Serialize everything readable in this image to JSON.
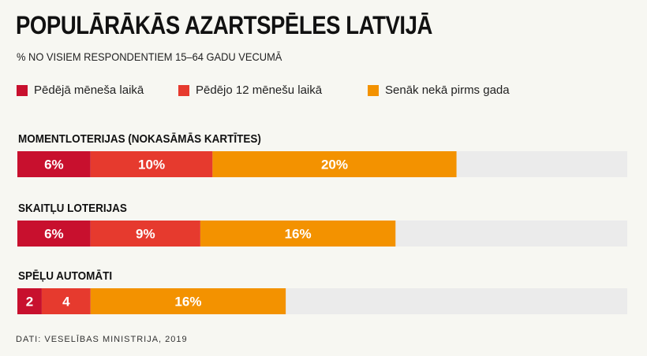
{
  "header": {
    "title": "POPULĀRĀKĀS AZARTSPĒLES LATVIJĀ",
    "subtitle": "% NO VISIEM RESPONDENTIEM 15–64 GADU VECUMĀ"
  },
  "legend": [
    {
      "label": "Pēdējā mēneša laikā",
      "color": "#c8102e"
    },
    {
      "label": "Pēdējo 12 mēnešu laikā",
      "color": "#e63a2e"
    },
    {
      "label": "Senāk nekā pirms gada",
      "color": "#f39200"
    }
  ],
  "colors": {
    "track": "#ebebeb",
    "segment_text": "#ffffff"
  },
  "chart_data": {
    "type": "bar",
    "orientation": "horizontal",
    "stacked": true,
    "unit": "%",
    "categories": [
      "MOMENTLOTERIJAS (NOKASĀMĀS KARTĪTES)",
      "SKAITĻU LOTERIJAS",
      "SPĒĻU AUTOMĀTI"
    ],
    "series": [
      {
        "name": "Pēdējā mēneša laikā",
        "values": [
          6,
          6,
          2
        ],
        "labels": [
          "6%",
          "6%",
          "2"
        ],
        "color": "#c8102e"
      },
      {
        "name": "Pēdējo 12 mēnešu laikā",
        "values": [
          10,
          9,
          4
        ],
        "labels": [
          "10%",
          "9%",
          "4"
        ],
        "color": "#e63a2e"
      },
      {
        "name": "Senāk nekā pirms gada",
        "values": [
          20,
          16,
          16
        ],
        "labels": [
          "20%",
          "16%",
          "16%"
        ],
        "color": "#f39200"
      }
    ],
    "xlim": [
      0,
      100
    ],
    "grid": false,
    "legend_position": "top"
  },
  "footer": {
    "source": "DATI: VESELĪBAS MINISTRIJA, 2019"
  }
}
